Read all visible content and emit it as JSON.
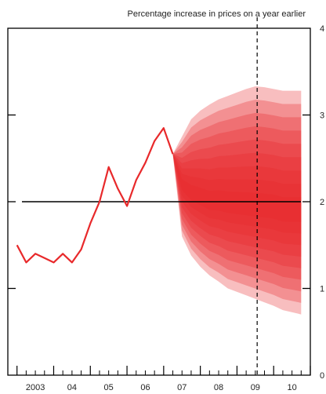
{
  "chart_data": {
    "type": "line",
    "title": "",
    "ylabel": "Percentage increase in prices on a year earlier",
    "xlabel": "",
    "xlim": [
      2002.75,
      2011.0
    ],
    "ylim": [
      0,
      4
    ],
    "yticks": [
      0,
      1,
      2,
      3,
      4
    ],
    "ytick_labels": [
      "0",
      "1",
      "2",
      "3",
      "4"
    ],
    "xtick_labels": [
      {
        "x": 2003.5,
        "label": "2003"
      },
      {
        "x": 2004.5,
        "label": "04"
      },
      {
        "x": 2005.5,
        "label": "05"
      },
      {
        "x": 2006.5,
        "label": "06"
      },
      {
        "x": 2007.5,
        "label": "07"
      },
      {
        "x": 2008.5,
        "label": "08"
      },
      {
        "x": 2009.5,
        "label": "09"
      },
      {
        "x": 2010.5,
        "label": "10"
      }
    ],
    "target_line": 2.0,
    "forecast_divider_x": 2009.55,
    "series": [
      {
        "color": "#e8292b",
        "x": [
          2003.0,
          2003.25,
          2003.5,
          2003.75,
          2004.0,
          2004.25,
          2004.5,
          2004.75,
          2005.0,
          2005.25,
          2005.5,
          2005.75,
          2006.0,
          2006.25,
          2006.5,
          2006.75,
          2007.0,
          2007.25
        ],
        "values": [
          1.5,
          1.3,
          1.4,
          1.35,
          1.3,
          1.4,
          1.3,
          1.45,
          1.75,
          2.0,
          2.4,
          2.15,
          1.95,
          2.25,
          2.45,
          2.7,
          2.85,
          2.55
        ]
      }
    ],
    "fan": {
      "color": "#e8292b",
      "x": [
        2007.25,
        2007.5,
        2007.75,
        2008.0,
        2008.25,
        2008.5,
        2008.75,
        2009.0,
        2009.25,
        2009.5,
        2009.75,
        2010.0,
        2010.25,
        2010.75
      ],
      "central": [
        2.55,
        2.2,
        2.1,
        2.05,
        2.0,
        2.0,
        1.98,
        1.97,
        1.96,
        1.95,
        1.94,
        1.93,
        1.9,
        1.9
      ],
      "upper": [
        2.55,
        2.75,
        2.95,
        3.05,
        3.12,
        3.18,
        3.22,
        3.26,
        3.3,
        3.33,
        3.32,
        3.3,
        3.28,
        3.28
      ],
      "lower": [
        2.55,
        1.6,
        1.38,
        1.25,
        1.15,
        1.08,
        1.0,
        0.96,
        0.92,
        0.88,
        0.84,
        0.8,
        0.75,
        0.7
      ]
    }
  }
}
